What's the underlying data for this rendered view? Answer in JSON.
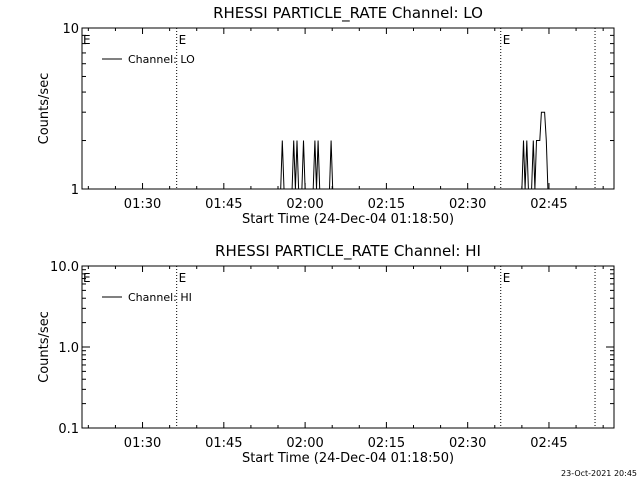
{
  "chart_data": [
    {
      "type": "line",
      "title": "RHESSI PARTICLE_RATE Channel: LO",
      "xlabel": "Start Time (24-Dec-04 01:18:50)",
      "ylabel": "Counts/sec",
      "yscale": "log",
      "ylim": [
        1,
        10
      ],
      "yticks": [
        {
          "value": 1,
          "label": "1"
        },
        {
          "value": 10,
          "label": "10"
        }
      ],
      "xlim_minutes": [
        78.83,
        177
      ],
      "xticks": [
        {
          "value": 90,
          "label": "01:30"
        },
        {
          "value": 105,
          "label": "01:45"
        },
        {
          "value": 120,
          "label": "02:00"
        },
        {
          "value": 135,
          "label": "02:15"
        },
        {
          "value": 150,
          "label": "02:30"
        },
        {
          "value": 165,
          "label": "02:45"
        }
      ],
      "event_markers": [
        {
          "x": 96.3,
          "label": "E"
        },
        {
          "x": 156.1,
          "label": "E"
        },
        {
          "x": 173.5,
          "label": ""
        }
      ],
      "left_edge_marker": "E",
      "legend": {
        "entries": [
          "Channel: LO"
        ],
        "position": "top-left"
      },
      "series": [
        {
          "name": "Channel: LO",
          "points": [
            [
              78.83,
              1
            ],
            [
              115.5,
              1
            ],
            [
              115.8,
              2
            ],
            [
              116.1,
              1
            ],
            [
              117.6,
              1
            ],
            [
              117.9,
              2
            ],
            [
              118.2,
              1
            ],
            [
              118.5,
              2
            ],
            [
              118.8,
              1
            ],
            [
              119.4,
              1
            ],
            [
              119.7,
              2
            ],
            [
              120.0,
              1
            ],
            [
              121.5,
              1
            ],
            [
              121.8,
              2
            ],
            [
              122.1,
              1
            ],
            [
              122.4,
              2
            ],
            [
              122.7,
              1
            ],
            [
              124.5,
              1
            ],
            [
              124.8,
              2
            ],
            [
              125.1,
              1
            ],
            [
              160.0,
              1
            ],
            [
              160.3,
              2
            ],
            [
              160.6,
              1
            ],
            [
              160.9,
              2
            ],
            [
              161.2,
              1
            ],
            [
              161.8,
              1
            ],
            [
              162.1,
              2
            ],
            [
              162.4,
              1
            ],
            [
              162.7,
              2
            ],
            [
              163.0,
              2
            ],
            [
              163.3,
              2
            ],
            [
              163.6,
              3
            ],
            [
              164.2,
              3
            ],
            [
              164.5,
              2
            ],
            [
              164.8,
              1
            ],
            [
              177,
              1
            ]
          ]
        }
      ]
    },
    {
      "type": "line",
      "title": "RHESSI PARTICLE_RATE Channel: HI",
      "xlabel": "Start Time (24-Dec-04 01:18:50)",
      "ylabel": "Counts/sec",
      "yscale": "log",
      "ylim": [
        0.1,
        10
      ],
      "yticks": [
        {
          "value": 0.1,
          "label": "0.1"
        },
        {
          "value": 1,
          "label": "1.0"
        },
        {
          "value": 10,
          "label": "10.0"
        }
      ],
      "xlim_minutes": [
        78.83,
        177
      ],
      "xticks": [
        {
          "value": 90,
          "label": "01:30"
        },
        {
          "value": 105,
          "label": "01:45"
        },
        {
          "value": 120,
          "label": "02:00"
        },
        {
          "value": 135,
          "label": "02:15"
        },
        {
          "value": 150,
          "label": "02:30"
        },
        {
          "value": 165,
          "label": "02:45"
        }
      ],
      "event_markers": [
        {
          "x": 96.3,
          "label": "E"
        },
        {
          "x": 156.1,
          "label": "E"
        },
        {
          "x": 173.5,
          "label": ""
        }
      ],
      "left_edge_marker": "E",
      "legend": {
        "entries": [
          "Channel: HI"
        ],
        "position": "top-left"
      },
      "series": [
        {
          "name": "Channel: HI",
          "points": []
        }
      ]
    }
  ],
  "footer": {
    "timestamp": "23-Oct-2021 20:45"
  },
  "colors": {
    "foreground": "#000000",
    "background": "#ffffff"
  }
}
